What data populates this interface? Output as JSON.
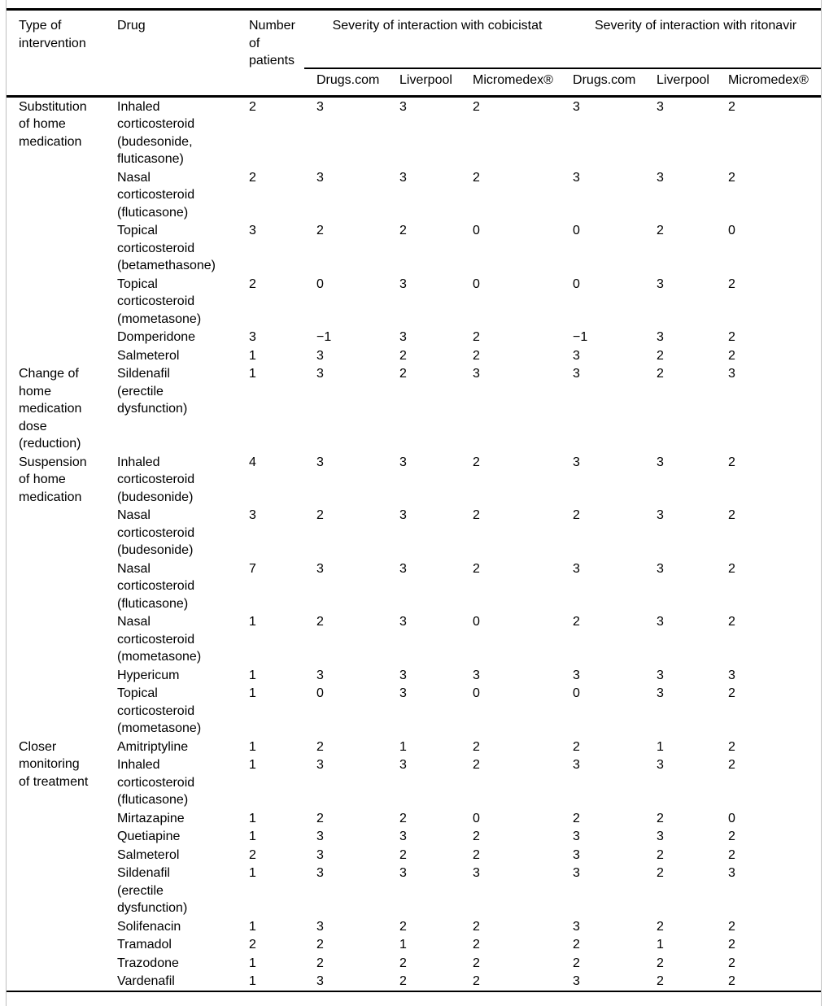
{
  "table": {
    "header": {
      "intervention": "Type of intervention",
      "drug": "Drug",
      "patients": "Number of patients",
      "spanner_cobicistat": "Severity of interaction with cobicistat",
      "spanner_ritonavir": "Severity of interaction with ritonavir",
      "sources": [
        "Drugs.com",
        "Liverpool",
        "Micromedex®"
      ]
    },
    "colors": {
      "rule": "#000000",
      "frame_border": "#bfbfbf",
      "text": "#000000",
      "background": "#ffffff"
    },
    "sections": [
      {
        "intervention": "Substitution of home medication",
        "rows": [
          {
            "drug": "Inhaled corticosteroid (budesonide, fluticasone)",
            "patients": "2",
            "cobicistat": [
              "3",
              "3",
              "2"
            ],
            "ritonavir": [
              "3",
              "3",
              "2"
            ]
          },
          {
            "drug": "Nasal corticosteroid (fluticasone)",
            "patients": "2",
            "cobicistat": [
              "3",
              "3",
              "2"
            ],
            "ritonavir": [
              "3",
              "3",
              "2"
            ]
          },
          {
            "drug": "Topical corticosteroid (betamethasone)",
            "patients": "3",
            "cobicistat": [
              "2",
              "2",
              "0"
            ],
            "ritonavir": [
              "0",
              "2",
              "0"
            ]
          },
          {
            "drug": "Topical corticosteroid (mometasone)",
            "patients": "2",
            "cobicistat": [
              "0",
              "3",
              "0"
            ],
            "ritonavir": [
              "0",
              "3",
              "2"
            ]
          },
          {
            "drug": "Domperidone",
            "patients": "3",
            "cobicistat": [
              "−1",
              "3",
              "2"
            ],
            "ritonavir": [
              "−1",
              "3",
              "2"
            ]
          },
          {
            "drug": "Salmeterol",
            "patients": "1",
            "cobicistat": [
              "3",
              "2",
              "2"
            ],
            "ritonavir": [
              "3",
              "2",
              "2"
            ]
          }
        ]
      },
      {
        "intervention": "Change of home medication dose (reduction)",
        "rows": [
          {
            "drug": "Sildenafil (erectile dysfunction)",
            "patients": "1",
            "cobicistat": [
              "3",
              "2",
              "3"
            ],
            "ritonavir": [
              "3",
              "2",
              "3"
            ]
          }
        ]
      },
      {
        "intervention": "Suspension of home medication",
        "rows": [
          {
            "drug": "Inhaled corticosteroid (budesonide)",
            "patients": "4",
            "cobicistat": [
              "3",
              "3",
              "2"
            ],
            "ritonavir": [
              "3",
              "3",
              "2"
            ]
          },
          {
            "drug": "Nasal corticosteroid (budesonide)",
            "patients": "3",
            "cobicistat": [
              "2",
              "3",
              "2"
            ],
            "ritonavir": [
              "2",
              "3",
              "2"
            ]
          },
          {
            "drug": "Nasal corticosteroid (fluticasone)",
            "patients": "7",
            "cobicistat": [
              "3",
              "3",
              "2"
            ],
            "ritonavir": [
              "3",
              "3",
              "2"
            ]
          },
          {
            "drug": "Nasal corticosteroid (mometasone)",
            "patients": "1",
            "cobicistat": [
              "2",
              "3",
              "0"
            ],
            "ritonavir": [
              "2",
              "3",
              "2"
            ]
          },
          {
            "drug": "Hypericum",
            "patients": "1",
            "cobicistat": [
              "3",
              "3",
              "3"
            ],
            "ritonavir": [
              "3",
              "3",
              "3"
            ]
          },
          {
            "drug": "Topical corticosteroid (mometasone)",
            "patients": "1",
            "cobicistat": [
              "0",
              "3",
              "0"
            ],
            "ritonavir": [
              "0",
              "3",
              "2"
            ]
          }
        ]
      },
      {
        "intervention": "Closer monitoring of treatment",
        "rows": [
          {
            "drug": "Amitriptyline",
            "patients": "1",
            "cobicistat": [
              "2",
              "1",
              "2"
            ],
            "ritonavir": [
              "2",
              "1",
              "2"
            ]
          },
          {
            "drug": "Inhaled corticosteroid (fluticasone)",
            "patients": "1",
            "cobicistat": [
              "3",
              "3",
              "2"
            ],
            "ritonavir": [
              "3",
              "3",
              "2"
            ]
          },
          {
            "drug": "Mirtazapine",
            "patients": "1",
            "cobicistat": [
              "2",
              "2",
              "0"
            ],
            "ritonavir": [
              "2",
              "2",
              "0"
            ]
          },
          {
            "drug": "Quetiapine",
            "patients": "1",
            "cobicistat": [
              "3",
              "3",
              "2"
            ],
            "ritonavir": [
              "3",
              "3",
              "2"
            ]
          },
          {
            "drug": "Salmeterol",
            "patients": "2",
            "cobicistat": [
              "3",
              "2",
              "2"
            ],
            "ritonavir": [
              "3",
              "2",
              "2"
            ]
          },
          {
            "drug": "Sildenafil (erectile dysfunction)",
            "patients": "1",
            "cobicistat": [
              "3",
              "3",
              "3"
            ],
            "ritonavir": [
              "3",
              "2",
              "3"
            ]
          },
          {
            "drug": "Solifenacin",
            "patients": "1",
            "cobicistat": [
              "3",
              "2",
              "2"
            ],
            "ritonavir": [
              "3",
              "2",
              "2"
            ]
          },
          {
            "drug": "Tramadol",
            "patients": "2",
            "cobicistat": [
              "2",
              "1",
              "2"
            ],
            "ritonavir": [
              "2",
              "1",
              "2"
            ]
          },
          {
            "drug": "Trazodone",
            "patients": "1",
            "cobicistat": [
              "2",
              "2",
              "2"
            ],
            "ritonavir": [
              "2",
              "2",
              "2"
            ]
          },
          {
            "drug": "Vardenafil",
            "patients": "1",
            "cobicistat": [
              "3",
              "2",
              "2"
            ],
            "ritonavir": [
              "3",
              "2",
              "2"
            ]
          }
        ]
      }
    ]
  }
}
